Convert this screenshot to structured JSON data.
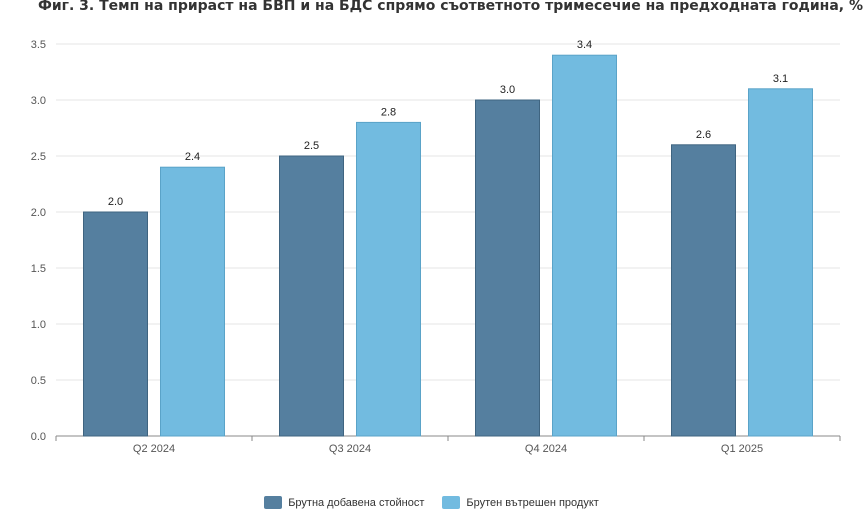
{
  "chart_data": {
    "type": "bar",
    "title": "Фиг. 3. Темп на прираст на БВП и на БДС спрямо съответното тримесечие на предходната година, %",
    "categories": [
      "Q2 2024",
      "Q3 2024",
      "Q4 2024",
      "Q1 2025"
    ],
    "series": [
      {
        "name": "Брутна добавена стойност",
        "values": [
          2.0,
          2.5,
          3.0,
          2.6
        ],
        "labels": [
          "2.0",
          "2.5",
          "3.0",
          "2.6"
        ],
        "color": "#557f9f"
      },
      {
        "name": "Брутен вътрешен продукт",
        "values": [
          2.4,
          2.8,
          3.4,
          3.1
        ],
        "labels": [
          "2.4",
          "2.8",
          "3.4",
          "3.1"
        ],
        "color": "#72bbe0"
      }
    ],
    "ylim": [
      0,
      3.5
    ],
    "yticks": [
      "0.0",
      "0.5",
      "1.0",
      "1.5",
      "2.0",
      "2.5",
      "3.0",
      "3.5"
    ],
    "grid": true,
    "legend_position": "bottom-center",
    "xlabel": "",
    "ylabel": ""
  }
}
